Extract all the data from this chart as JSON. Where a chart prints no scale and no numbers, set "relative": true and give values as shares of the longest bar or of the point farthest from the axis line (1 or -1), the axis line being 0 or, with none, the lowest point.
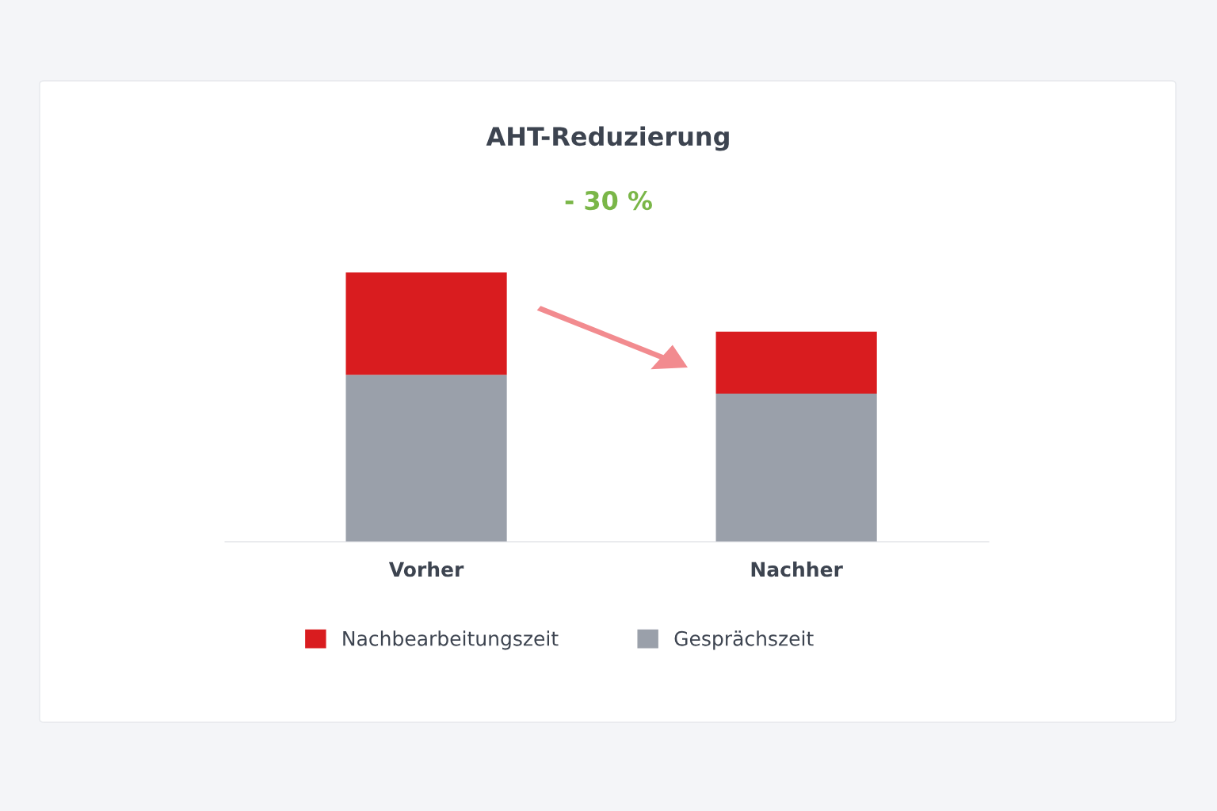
{
  "chart_data": {
    "type": "bar",
    "title": "AHT-Reduzierung",
    "subtitle": "- 30 %",
    "categories": [
      "Vorher",
      "Nachher"
    ],
    "stacked": true,
    "relative": true,
    "series": [
      {
        "name": "Gesprächszeit",
        "color": "#9aa0aa",
        "values": [
          0.62,
          0.55
        ]
      },
      {
        "name": "Nachbearbeitungszeit",
        "color": "#d91c1f",
        "values": [
          0.38,
          0.23
        ]
      }
    ],
    "legend": "bottom",
    "grid": false
  }
}
